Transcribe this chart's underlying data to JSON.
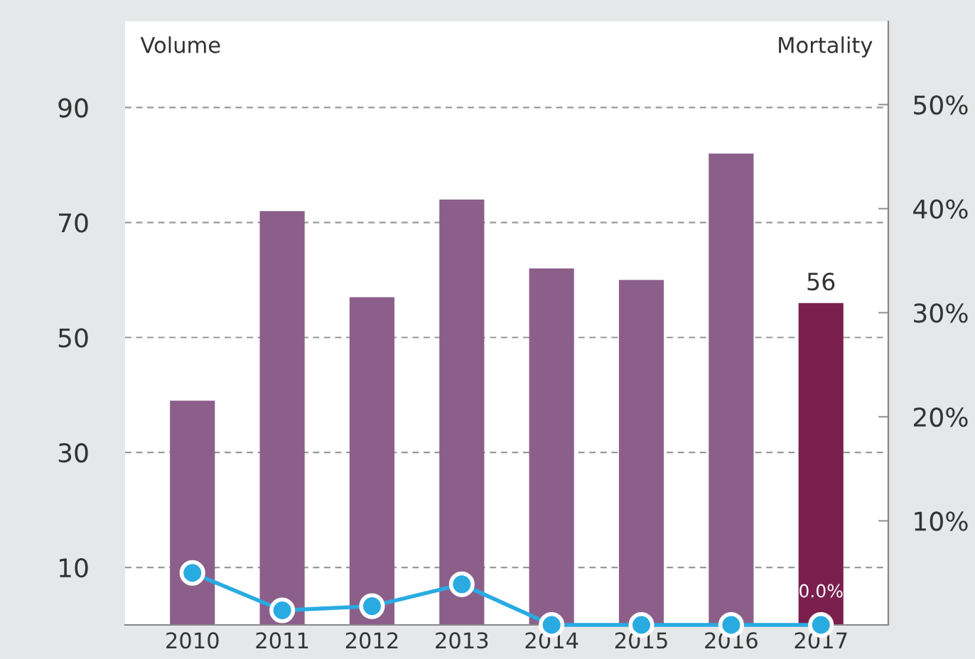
{
  "chart_data": {
    "type": "bar",
    "categories": [
      "2010",
      "2011",
      "2012",
      "2013",
      "2014",
      "2015",
      "2016",
      "2017"
    ],
    "ylabel": "Volume",
    "y2label": "Mortality",
    "ylim": [
      0,
      105
    ],
    "yticks": [
      10,
      30,
      50,
      70,
      90
    ],
    "y2lim": [
      0,
      58
    ],
    "y2ticks": [
      {
        "value": 10,
        "label": "10%"
      },
      {
        "value": 20,
        "label": "20%"
      },
      {
        "value": 30,
        "label": "30%"
      },
      {
        "value": 40,
        "label": "40%"
      },
      {
        "value": 50,
        "label": "50%"
      }
    ],
    "grid": "y",
    "legend": false,
    "marker": "circle",
    "line_style": "solid",
    "series": [
      {
        "colors": [
          "#8c5f8b",
          "#8c5f8b",
          "#8c5f8b",
          "#8c5f8b",
          "#8c5f8b",
          "#8c5f8b",
          "#8c5f8b",
          "#7b1f4e"
        ],
        "values": [
          39,
          72,
          57,
          74,
          62,
          60,
          82,
          56
        ],
        "value_labels": [
          null,
          null,
          null,
          null,
          null,
          null,
          null,
          "56"
        ]
      },
      {
        "type": "line",
        "axis": "y2",
        "color": "#29abe2",
        "values": [
          5.0,
          1.4,
          1.8,
          3.9,
          0,
          0,
          0,
          0
        ],
        "value_labels": [
          null,
          null,
          null,
          null,
          null,
          null,
          null,
          "0.0%"
        ]
      }
    ]
  }
}
